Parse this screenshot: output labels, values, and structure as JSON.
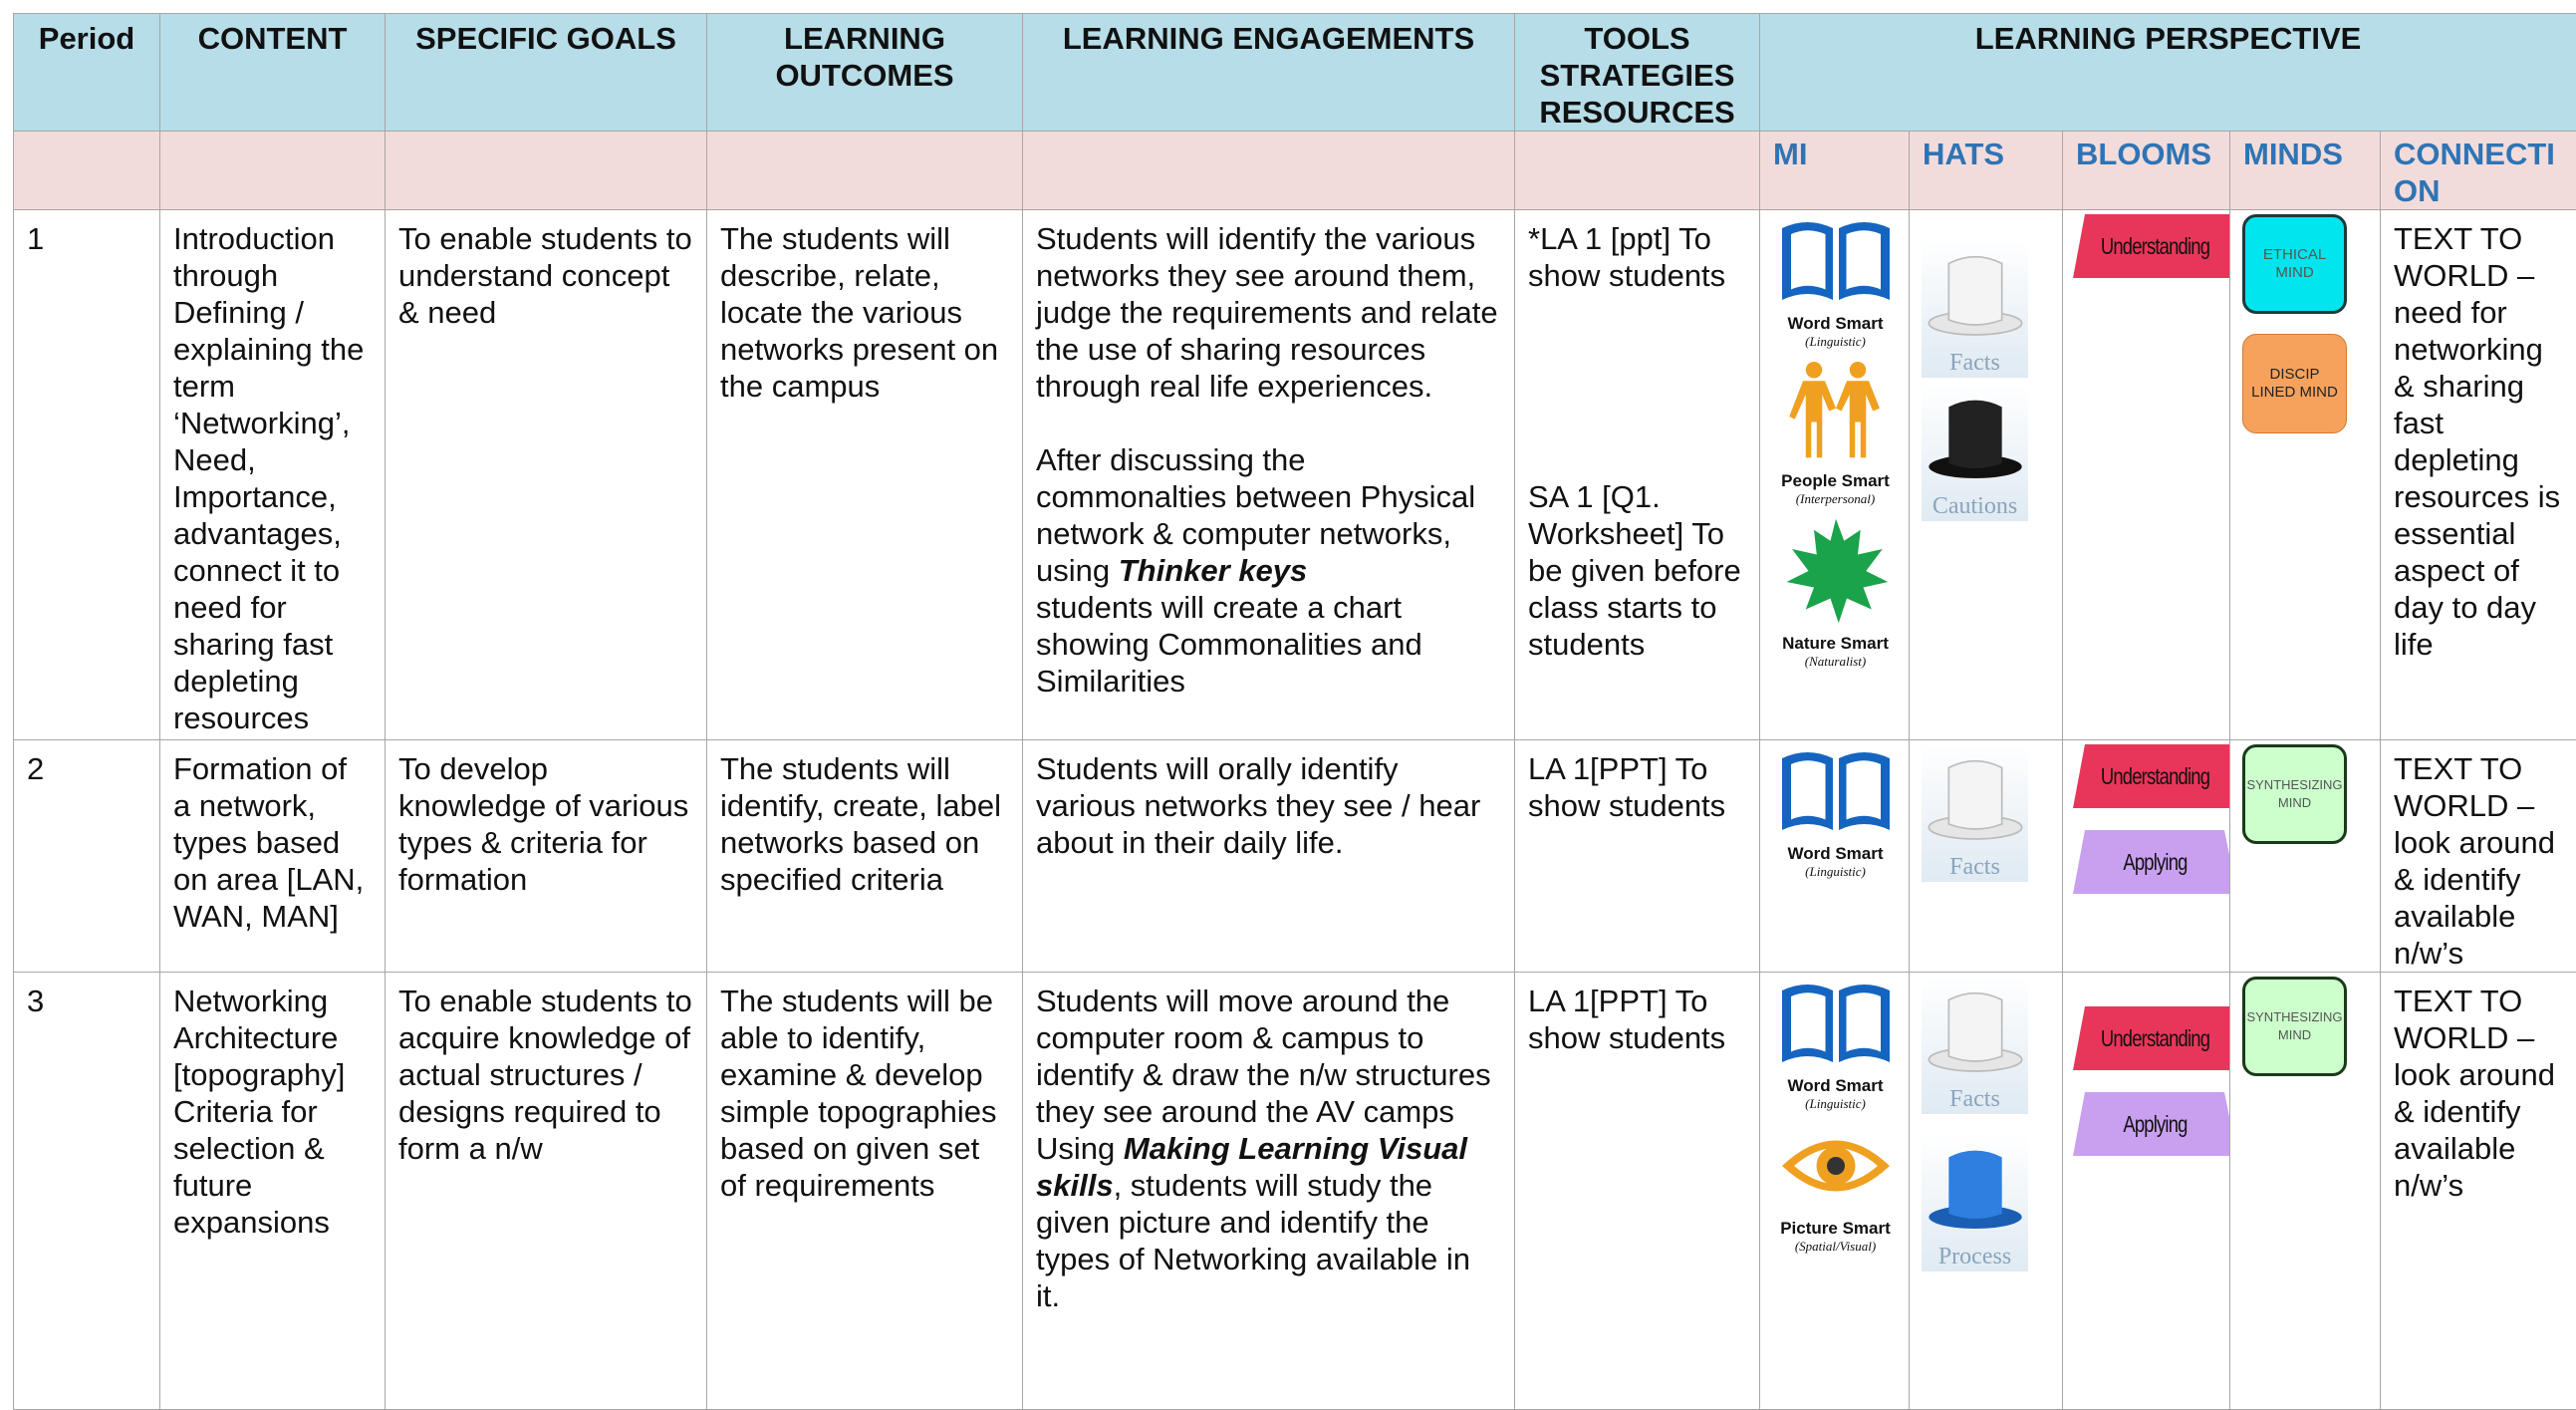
{
  "header": {
    "columns": [
      "Period",
      "CONTENT",
      "SPECIFIC GOALS",
      "LEARNING OUTCOMES",
      "LEARNING ENGAGEMENTS",
      "TOOLS STRATEGIES RESOURCES",
      "LEARNING PERSPECTIVE"
    ],
    "sub_columns": [
      "MI",
      "HATS",
      "BLOOMS",
      "MINDS",
      "CONNECTION"
    ]
  },
  "rows": [
    {
      "period": "1",
      "content": "Introduction through Defining / explaining the term ‘Networking’, Need, Importance, advantages, connect it to need for sharing fast depleting resources",
      "goals": "To enable students to understand concept & need",
      "outcomes": "The students will describe, relate, locate the various networks present on the campus",
      "engagement": [
        [
          "Students will identify the various networks they see around them, judge the requirements and relate the use of sharing resources through real life experiences."
        ],
        [
          "After discussing the commonalties between Physical network & computer networks, using",
          "Thinker keys",
          "students will create a chart showing Commonalities and Similarities"
        ]
      ],
      "tools": [
        "*LA 1 [ppt] To show students",
        "SA 1 [Q1. Worksheet] To be given before class starts to students"
      ],
      "mi": [
        {
          "name": "Word Smart",
          "sub": "(Linguistic)"
        },
        {
          "name": "People Smart",
          "sub": "(Interpersonal)"
        },
        {
          "name": "Nature Smart",
          "sub": "(Naturalist)"
        }
      ],
      "hats": [
        "Facts",
        "Cautions"
      ],
      "blooms": [
        "Understanding"
      ],
      "minds": [
        "ETHICAL MIND",
        "DISCIP LINED MIND"
      ],
      "connection": "TEXT TO WORLD – need for networking & sharing fast depleting resources is essential aspect of day to day life"
    },
    {
      "period": "2",
      "content": "Formation of a network, types based on area [LAN, WAN, MAN]",
      "goals": "To develop knowledge of various types & criteria for formation",
      "outcomes": "The students will identify, create, label networks based on specified criteria",
      "engagement": [
        [
          "Students will orally identify various networks they see / hear about in their daily life."
        ]
      ],
      "tools": [
        "LA 1[PPT] To show students"
      ],
      "mi": [
        {
          "name": "Word Smart",
          "sub": "(Linguistic)"
        }
      ],
      "hats": [
        "Facts"
      ],
      "blooms": [
        "Understanding",
        "Applying"
      ],
      "minds": [
        "SYNTHESIZING MIND"
      ],
      "connection": "TEXT TO WORLD – look around & identify available n/w’s"
    },
    {
      "period": "3",
      "content": "Networking Architecture [topography] Criteria for selection & future expansions",
      "goals": "To enable students to acquire knowledge of actual structures / designs required to form a n/w",
      "outcomes": "The students will be able to identify, examine & develop simple topographies based on given set of requirements",
      "engagement": [
        [
          "Students will move around the computer room & campus to identify & draw the n/w structures they see around the AV camps",
          "Using",
          "Making Learning Visual skills",
          ", students will study the given picture and identify the types of Networking available in it."
        ]
      ],
      "tools": [
        "LA 1[PPT] To show students"
      ],
      "mi": [
        {
          "name": "Word Smart",
          "sub": "(Linguistic)"
        },
        {
          "name": "Picture Smart",
          "sub": "(Spatial/Visual)"
        }
      ],
      "hats": [
        "Facts",
        "Process"
      ],
      "blooms": [
        "Understanding",
        "Applying"
      ],
      "minds": [
        "SYNTHESIZING MIND"
      ],
      "connection": "TEXT TO WORLD – look around & identify available n/w’s"
    }
  ]
}
